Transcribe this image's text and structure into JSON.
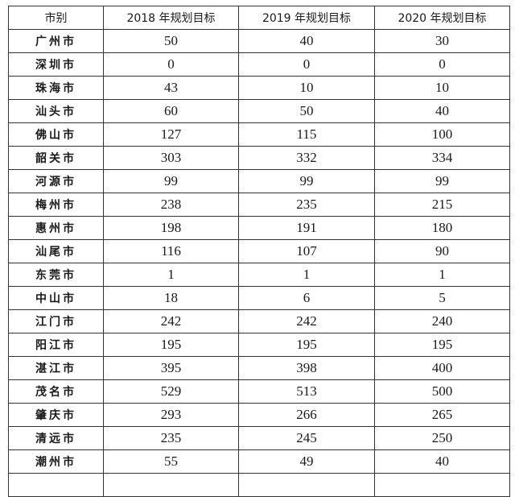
{
  "table": {
    "headers": [
      "市别",
      "2018 年规划目标",
      "2019 年规划目标",
      "2020 年规划目标"
    ],
    "rows": [
      [
        "广州市",
        "50",
        "40",
        "30"
      ],
      [
        "深圳市",
        "0",
        "0",
        "0"
      ],
      [
        "珠海市",
        "43",
        "10",
        "10"
      ],
      [
        "汕头市",
        "60",
        "50",
        "40"
      ],
      [
        "佛山市",
        "127",
        "115",
        "100"
      ],
      [
        "韶关市",
        "303",
        "332",
        "334"
      ],
      [
        "河源市",
        "99",
        "99",
        "99"
      ],
      [
        "梅州市",
        "238",
        "235",
        "215"
      ],
      [
        "惠州市",
        "198",
        "191",
        "180"
      ],
      [
        "汕尾市",
        "116",
        "107",
        "90"
      ],
      [
        "东莞市",
        "1",
        "1",
        "1"
      ],
      [
        "中山市",
        "18",
        "6",
        "5"
      ],
      [
        "江门市",
        "242",
        "242",
        "240"
      ],
      [
        "阳江市",
        "195",
        "195",
        "195"
      ],
      [
        "湛江市",
        "395",
        "398",
        "400"
      ],
      [
        "茂名市",
        "529",
        "513",
        "500"
      ],
      [
        "肇庆市",
        "293",
        "266",
        "265"
      ],
      [
        "清远市",
        "235",
        "245",
        "250"
      ],
      [
        "潮州市",
        "55",
        "49",
        "40"
      ]
    ]
  }
}
